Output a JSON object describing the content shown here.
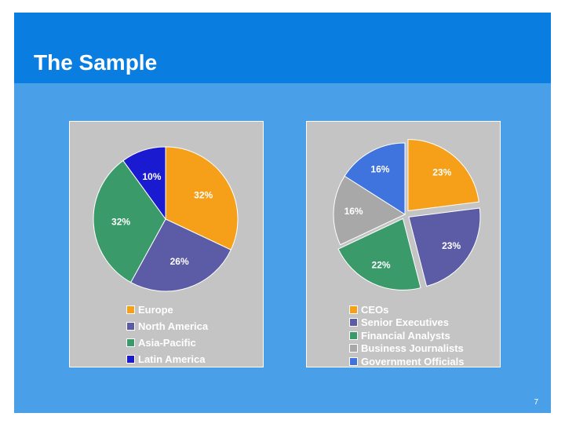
{
  "slide": {
    "title": "The Sample",
    "page_number": "7"
  },
  "chart_data": [
    {
      "type": "pie",
      "categories": [
        "Europe",
        "North America",
        "Asia-Pacific",
        "Latin America"
      ],
      "values": [
        32,
        26,
        32,
        10
      ],
      "labels": [
        "32%",
        "26%",
        "32%",
        "10%"
      ],
      "colors": [
        "#f6a01a",
        "#5b5ba6",
        "#3a9a6a",
        "#1a1ad0"
      ],
      "legend": "bottom"
    },
    {
      "type": "pie",
      "categories": [
        "CEOs",
        "Senior Executives",
        "Financial Analysts",
        "Business Journalists",
        "Government Officials"
      ],
      "values": [
        23,
        23,
        22,
        16,
        16
      ],
      "labels": [
        "23%",
        "23%",
        "22%",
        "16%",
        "16%"
      ],
      "colors": [
        "#f6a01a",
        "#5b5ba6",
        "#3a9a6a",
        "#a8a8a8",
        "#3f73dd"
      ],
      "legend": "bottom"
    }
  ]
}
